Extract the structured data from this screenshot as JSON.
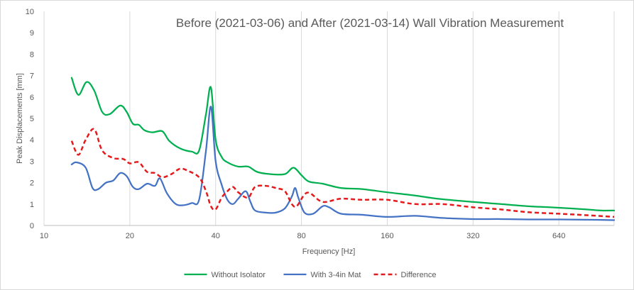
{
  "chart_data": {
    "type": "line",
    "title": "Before (2021-03-06) and After (2021-03-14) Wall Vibration Measurement",
    "xlabel": "Frequency [Hz]",
    "ylabel": "Peak Displacements [mm]",
    "x_scale": "log2",
    "xlim": [
      10,
      1000
    ],
    "ylim": [
      0,
      10
    ],
    "x_ticks": [
      10,
      20,
      40,
      80,
      160,
      320,
      640
    ],
    "x_tick_labels": [
      "10",
      "20",
      "40",
      "80",
      "160",
      "320",
      "640"
    ],
    "y_ticks": [
      0,
      1,
      2,
      3,
      4,
      5,
      6,
      7,
      8,
      9,
      10
    ],
    "y_tick_labels": [
      "0",
      "1",
      "2",
      "3",
      "4",
      "5",
      "6",
      "7",
      "8",
      "9",
      "10"
    ],
    "grid": "vertical",
    "legend_position": "bottom",
    "series": [
      {
        "name": "Without Isolator",
        "color": "#00b050",
        "dash": "solid",
        "points": [
          [
            12.5,
            6.9
          ],
          [
            13.2,
            6.1
          ],
          [
            14.1,
            6.7
          ],
          [
            15.0,
            6.3
          ],
          [
            16.0,
            5.3
          ],
          [
            17.0,
            5.2
          ],
          [
            18.5,
            5.6
          ],
          [
            19.5,
            5.3
          ],
          [
            20.5,
            4.75
          ],
          [
            21.5,
            4.7
          ],
          [
            22.5,
            4.45
          ],
          [
            24.0,
            4.35
          ],
          [
            26.0,
            4.4
          ],
          [
            27.5,
            3.95
          ],
          [
            30.0,
            3.6
          ],
          [
            33.0,
            3.45
          ],
          [
            35.0,
            3.5
          ],
          [
            37.0,
            5.2
          ],
          [
            38.5,
            6.45
          ],
          [
            40.0,
            4.0
          ],
          [
            42.0,
            3.2
          ],
          [
            44.0,
            2.95
          ],
          [
            48.0,
            2.75
          ],
          [
            52.0,
            2.75
          ],
          [
            56.0,
            2.5
          ],
          [
            62.0,
            2.4
          ],
          [
            70.0,
            2.4
          ],
          [
            75.0,
            2.7
          ],
          [
            80.0,
            2.35
          ],
          [
            85.0,
            2.05
          ],
          [
            95.0,
            1.95
          ],
          [
            110.0,
            1.75
          ],
          [
            130.0,
            1.7
          ],
          [
            160.0,
            1.55
          ],
          [
            200.0,
            1.4
          ],
          [
            240.0,
            1.25
          ],
          [
            320.0,
            1.1
          ],
          [
            400.0,
            1.0
          ],
          [
            500.0,
            0.9
          ],
          [
            600.0,
            0.85
          ],
          [
            700.0,
            0.8
          ],
          [
            800.0,
            0.75
          ],
          [
            900.0,
            0.7
          ],
          [
            1000.0,
            0.7
          ]
        ]
      },
      {
        "name": "With 3-4in Mat",
        "color": "#4472c4",
        "dash": "solid",
        "points": [
          [
            12.5,
            2.85
          ],
          [
            13.0,
            2.95
          ],
          [
            14.0,
            2.7
          ],
          [
            14.8,
            1.75
          ],
          [
            15.5,
            1.7
          ],
          [
            16.5,
            2.0
          ],
          [
            17.5,
            2.1
          ],
          [
            18.5,
            2.45
          ],
          [
            19.5,
            2.3
          ],
          [
            20.5,
            1.8
          ],
          [
            21.5,
            1.7
          ],
          [
            23.0,
            1.95
          ],
          [
            24.5,
            1.85
          ],
          [
            25.5,
            2.2
          ],
          [
            27.0,
            1.5
          ],
          [
            29.0,
            1.0
          ],
          [
            31.0,
            0.95
          ],
          [
            33.0,
            1.05
          ],
          [
            35.0,
            1.2
          ],
          [
            37.0,
            3.5
          ],
          [
            38.5,
            5.55
          ],
          [
            40.0,
            3.0
          ],
          [
            42.0,
            1.9
          ],
          [
            44.0,
            1.2
          ],
          [
            46.0,
            1.0
          ],
          [
            48.0,
            1.25
          ],
          [
            51.0,
            1.6
          ],
          [
            53.0,
            1.1
          ],
          [
            55.0,
            0.7
          ],
          [
            60.0,
            0.6
          ],
          [
            65.0,
            0.6
          ],
          [
            70.0,
            0.8
          ],
          [
            74.0,
            1.35
          ],
          [
            76.0,
            1.75
          ],
          [
            78.0,
            1.3
          ],
          [
            82.0,
            0.6
          ],
          [
            88.0,
            0.55
          ],
          [
            95.0,
            0.9
          ],
          [
            100.0,
            0.85
          ],
          [
            110.0,
            0.55
          ],
          [
            130.0,
            0.5
          ],
          [
            160.0,
            0.4
          ],
          [
            200.0,
            0.45
          ],
          [
            250.0,
            0.35
          ],
          [
            320.0,
            0.3
          ],
          [
            400.0,
            0.3
          ],
          [
            500.0,
            0.28
          ],
          [
            640.0,
            0.28
          ],
          [
            800.0,
            0.27
          ],
          [
            1000.0,
            0.25
          ]
        ]
      },
      {
        "name": "Difference",
        "color": "#e41a1c",
        "dash": "dashed",
        "points": [
          [
            12.5,
            3.95
          ],
          [
            13.2,
            3.3
          ],
          [
            14.0,
            4.0
          ],
          [
            15.0,
            4.5
          ],
          [
            16.0,
            3.5
          ],
          [
            17.5,
            3.15
          ],
          [
            19.0,
            3.1
          ],
          [
            20.0,
            2.9
          ],
          [
            21.5,
            2.95
          ],
          [
            23.0,
            2.5
          ],
          [
            24.5,
            2.45
          ],
          [
            26.0,
            2.25
          ],
          [
            28.0,
            2.4
          ],
          [
            30.0,
            2.65
          ],
          [
            32.0,
            2.55
          ],
          [
            35.0,
            2.25
          ],
          [
            37.0,
            1.6
          ],
          [
            38.5,
            0.9
          ],
          [
            40.0,
            0.75
          ],
          [
            42.0,
            1.3
          ],
          [
            44.0,
            1.6
          ],
          [
            46.0,
            1.8
          ],
          [
            48.0,
            1.55
          ],
          [
            52.0,
            1.3
          ],
          [
            55.0,
            1.8
          ],
          [
            60.0,
            1.85
          ],
          [
            65.0,
            1.75
          ],
          [
            70.0,
            1.6
          ],
          [
            74.0,
            1.0
          ],
          [
            77.0,
            0.9
          ],
          [
            82.0,
            1.45
          ],
          [
            86.0,
            1.5
          ],
          [
            95.0,
            1.1
          ],
          [
            110.0,
            1.25
          ],
          [
            130.0,
            1.2
          ],
          [
            160.0,
            1.2
          ],
          [
            200.0,
            1.0
          ],
          [
            250.0,
            1.0
          ],
          [
            320.0,
            0.85
          ],
          [
            400.0,
            0.75
          ],
          [
            500.0,
            0.62
          ],
          [
            640.0,
            0.55
          ],
          [
            800.0,
            0.48
          ],
          [
            1000.0,
            0.4
          ]
        ]
      }
    ]
  }
}
